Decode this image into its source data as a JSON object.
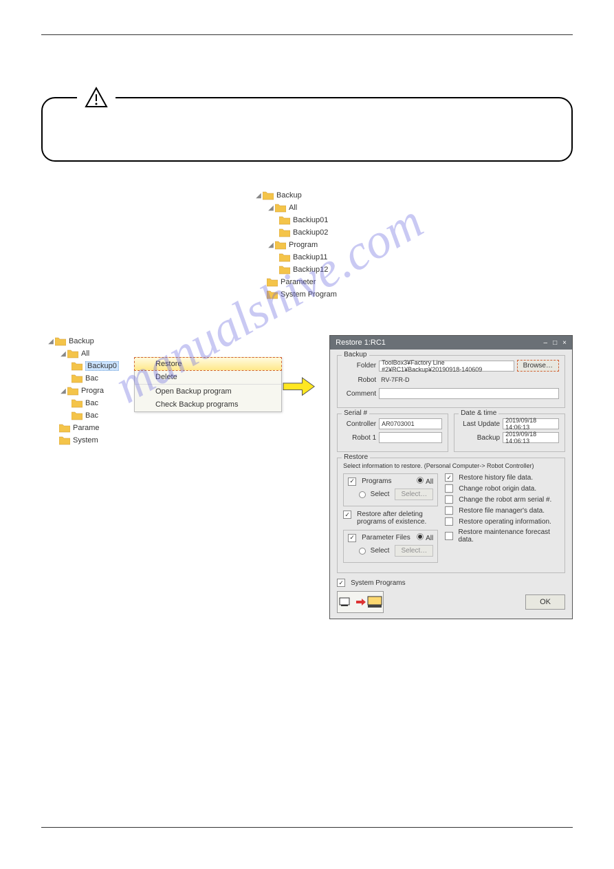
{
  "tree_top": {
    "root": "Backup",
    "nodes": [
      {
        "label": "All",
        "indent": 1,
        "arrow": true,
        "children": [
          {
            "label": "Backiup01",
            "indent": 2
          },
          {
            "label": "Backiup02",
            "indent": 2
          }
        ]
      },
      {
        "label": "Program",
        "indent": 1,
        "arrow": true,
        "children": [
          {
            "label": "Backiup11",
            "indent": 2
          },
          {
            "label": "Backiup12",
            "indent": 2
          }
        ]
      },
      {
        "label": "Parameter",
        "indent": 1,
        "arrow": false
      },
      {
        "label": "System Program",
        "indent": 1,
        "arrow": false
      }
    ]
  },
  "tree_left": {
    "root": "Backup",
    "items": [
      {
        "label": "All",
        "indent": 1,
        "arrow": true
      },
      {
        "label": "Backup0",
        "indent": 2,
        "selected": true
      },
      {
        "label": "Bac",
        "indent": 2
      },
      {
        "label": "Progra",
        "indent": 1,
        "arrow": true
      },
      {
        "label": "Bac",
        "indent": 2
      },
      {
        "label": "Bac",
        "indent": 2
      },
      {
        "label": "Parame",
        "indent": 1
      },
      {
        "label": "System",
        "indent": 1
      }
    ]
  },
  "context_menu": {
    "items": [
      "Restore",
      "Delete",
      "Open Backup program",
      "Check Backup programs"
    ],
    "highlighted": 0
  },
  "dialog": {
    "title": "Restore 1:RC1",
    "backup": {
      "legend": "Backup",
      "folder_label": "Folder",
      "folder_value": "ToolBox3¥Factory Line #2¥RC1¥Backup¥20190918-140609",
      "browse_button": "Browse…",
      "robot_label": "Robot",
      "robot_value": "RV-7FR-D",
      "comment_label": "Comment",
      "comment_value": ""
    },
    "serial": {
      "legend": "Serial #",
      "controller_label": "Controller",
      "controller_value": "AR0703001",
      "robot1_label": "Robot 1",
      "robot1_value": ""
    },
    "datetime": {
      "legend": "Date & time",
      "last_update_label": "Last Update",
      "last_update_value": "2019/09/18 14:06:13",
      "backup_label": "Backup",
      "backup_value": "2019/09/18 14:06:13"
    },
    "restore": {
      "legend": "Restore",
      "instruction": "Select information to restore. (Personal Computer-> Robot Controller)",
      "programs_label": "Programs",
      "all_label": "All",
      "select_label": "Select",
      "select_button": "Select…",
      "restore_after_label": "Restore after deleting programs of existence.",
      "parameter_files_label": "Parameter Files",
      "right_checks": [
        {
          "label": "Restore history file data.",
          "checked": true
        },
        {
          "label": "Change robot origin data.",
          "checked": false
        },
        {
          "label": "Change the robot arm serial #.",
          "checked": false
        },
        {
          "label": "Restore file manager's data.",
          "checked": false
        },
        {
          "label": "Restore operating information.",
          "checked": false
        },
        {
          "label": "Restore maintenance forecast data.",
          "checked": false
        }
      ],
      "system_programs_label": "System Programs"
    },
    "ok_button": "OK"
  },
  "watermark": "manualshive.com",
  "colors": {
    "folder_fill": "#f4c44a",
    "folder_stroke": "#c9952e",
    "menu_highlight_top": "#fffbe0",
    "menu_highlight_bot": "#ffe98a",
    "dialog_bg": "#e8e8e8",
    "titlebar_bg": "#6a7076"
  }
}
